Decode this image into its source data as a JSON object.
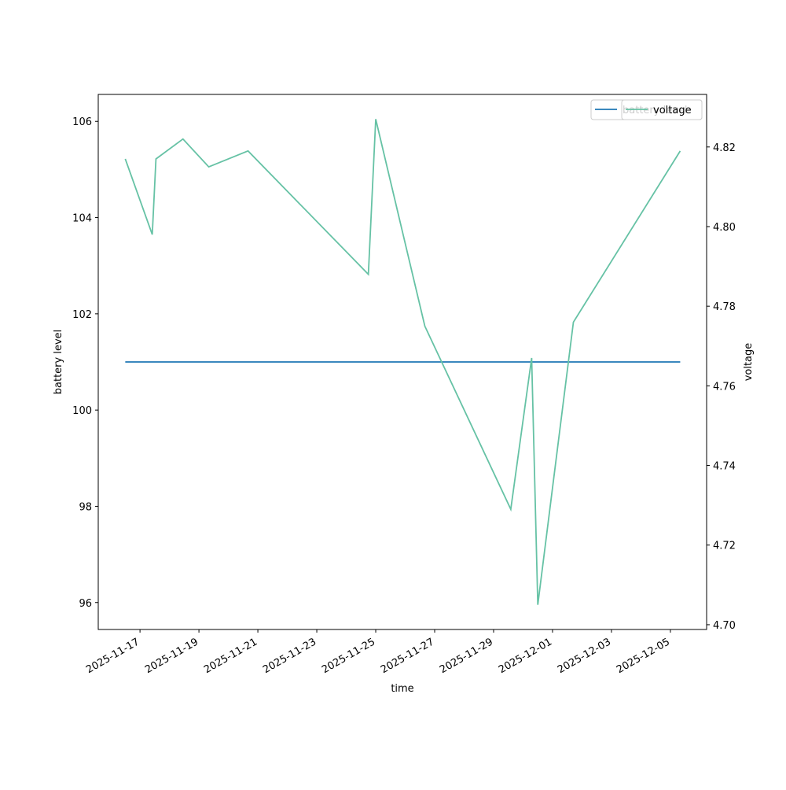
{
  "chart_data": {
    "type": "line",
    "x_label": "time",
    "y_label": "battery level",
    "y2_label": "voltage",
    "x": [
      "2025-11-16T12:00",
      "2025-11-17T10:00",
      "2025-11-17T13:00",
      "2025-11-18T11:00",
      "2025-11-19T08:00",
      "2025-11-20T16:00",
      "2025-11-24T18:00",
      "2025-11-25T00:00",
      "2025-11-26T16:00",
      "2025-11-29T14:00",
      "2025-11-30T07:00",
      "2025-11-30T12:00",
      "2025-12-01T17:00",
      "2025-12-05T08:00"
    ],
    "series": [
      {
        "name": "battery level",
        "color": "#1f77b4",
        "axis": "y",
        "values": [
          101,
          101,
          101,
          101,
          101,
          101,
          101,
          101,
          101,
          101,
          101,
          101,
          101,
          101
        ]
      },
      {
        "name": "voltage",
        "color": "#66c2a5",
        "axis": "y2",
        "values": [
          4.817,
          4.798,
          4.817,
          4.822,
          4.815,
          4.819,
          4.788,
          4.827,
          4.775,
          4.729,
          4.767,
          4.705,
          4.776,
          4.819
        ]
      }
    ],
    "xlim": [
      "2025-11-15T14:00",
      "2025-12-06T05:30"
    ],
    "xticks": [
      "2025-11-17",
      "2025-11-19",
      "2025-11-21",
      "2025-11-23",
      "2025-11-25",
      "2025-11-27",
      "2025-11-29",
      "2025-12-01",
      "2025-12-03",
      "2025-12-05"
    ],
    "ylim": [
      95.44,
      106.56
    ],
    "yticks": [
      96,
      98,
      100,
      102,
      104,
      106
    ],
    "y2lim": [
      4.6988,
      4.8332
    ],
    "y2ticks": [
      {
        "value": 4.7,
        "label": "4.70"
      },
      4.72,
      4.74,
      4.76,
      4.78,
      {
        "value": 4.8,
        "label": "4.80"
      },
      4.82
    ],
    "legend": "upper right"
  }
}
